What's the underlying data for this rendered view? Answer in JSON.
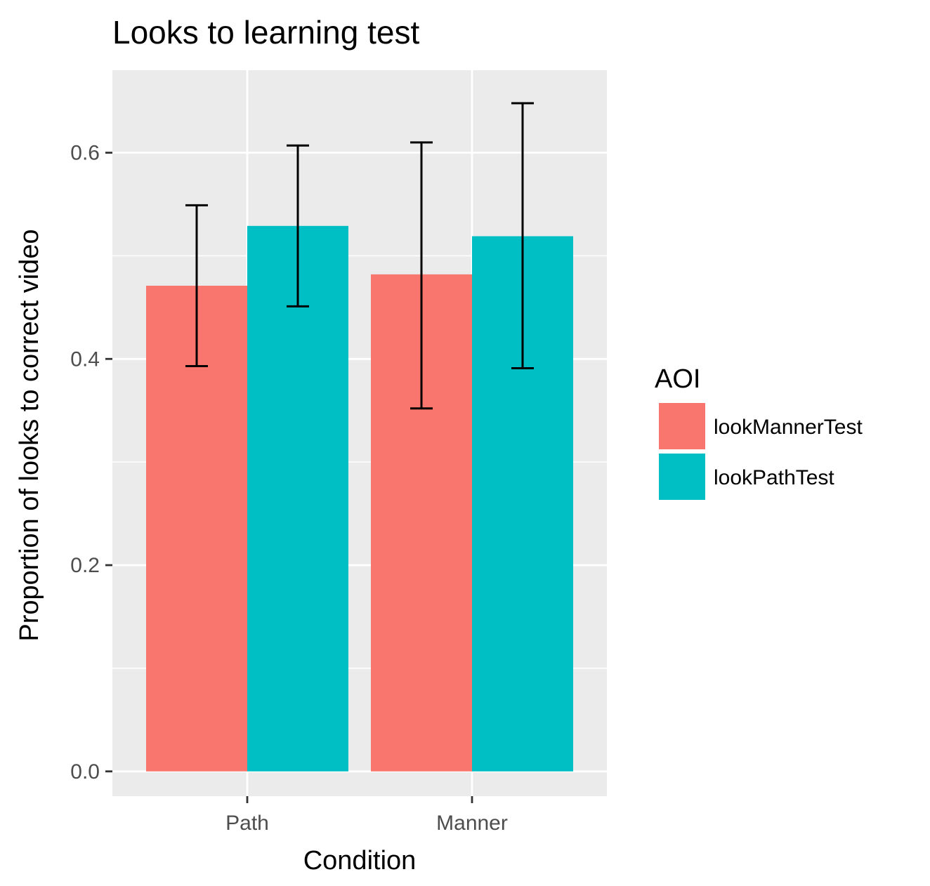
{
  "chart_data": {
    "type": "bar",
    "title": "Looks to learning test",
    "xlabel": "Condition",
    "ylabel": "Proportion of looks to correct video",
    "categories": [
      "Path",
      "Manner"
    ],
    "series": [
      {
        "name": "lookMannerTest",
        "color": "#F8766D",
        "values": [
          0.471,
          0.482
        ],
        "error_low": [
          0.393,
          0.352
        ],
        "error_high": [
          0.549,
          0.61
        ]
      },
      {
        "name": "lookPathTest",
        "color": "#00BFC4",
        "values": [
          0.529,
          0.519
        ],
        "error_low": [
          0.451,
          0.391
        ],
        "error_high": [
          0.607,
          0.648
        ]
      }
    ],
    "ylim": [
      -0.024,
      0.68
    ],
    "yticks": [
      0.0,
      0.2,
      0.4,
      0.6
    ],
    "ytick_labels": [
      "0.0",
      "0.2",
      "0.4",
      "0.6"
    ],
    "grid": true,
    "panel_background": "#EBEBEB",
    "legend": {
      "title": "AOI",
      "placement": "right"
    }
  }
}
